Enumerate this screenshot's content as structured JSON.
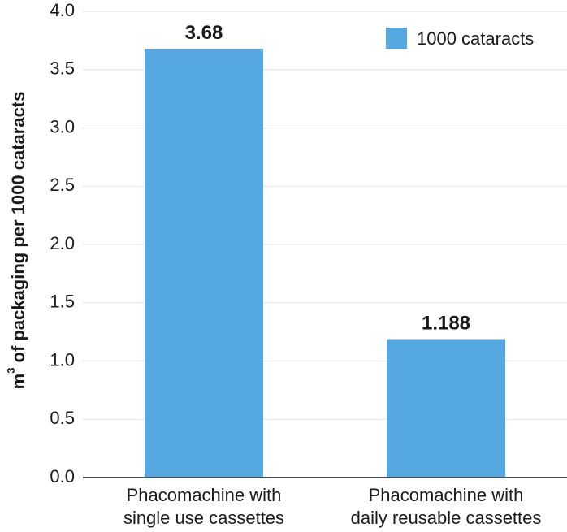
{
  "chart_data": {
    "type": "bar",
    "title": "",
    "xlabel": "",
    "ylabel": {
      "prefix": "m",
      "superscript": "3",
      "suffix": " of packaging per 1000 cataracts"
    },
    "ylim": [
      0,
      4.0
    ],
    "yticks": [
      0.0,
      0.5,
      1.0,
      1.5,
      2.0,
      2.5,
      3.0,
      3.5,
      4.0
    ],
    "ytick_labels": [
      "0.0",
      "0.5",
      "1.0",
      "1.5",
      "2.0",
      "2.5",
      "3.0",
      "3.5",
      "4.0"
    ],
    "grid": true,
    "legend_position": "top-right",
    "categories": [
      {
        "lines": [
          "Phacomachine with",
          "single use cassettes"
        ]
      },
      {
        "lines": [
          "Phacomachine with",
          "daily reusable cassettes"
        ]
      }
    ],
    "series": [
      {
        "name": "1000 cataracts",
        "color": "#56a8e0",
        "values": [
          3.68,
          1.188
        ],
        "value_labels": [
          "3.68",
          "1.188"
        ]
      }
    ]
  }
}
